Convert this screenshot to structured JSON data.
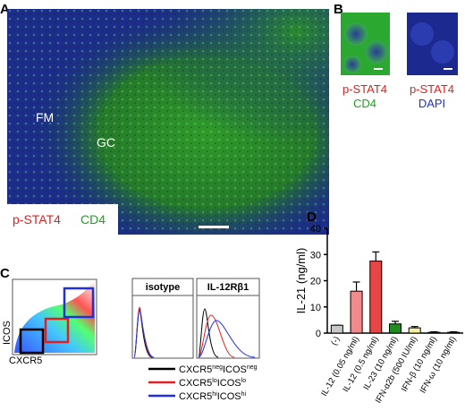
{
  "panels": {
    "a": {
      "label": "A",
      "fm": "FM",
      "gc": "GC",
      "stain1": "p-STAT4",
      "stain2": "CD4"
    },
    "b": {
      "label": "B",
      "left1": "p-STAT4",
      "left2": "CD4",
      "right1": "p-STAT4",
      "right2": "DAPI"
    },
    "c": {
      "label": "C",
      "yaxis": "ICOS",
      "xaxis": "CXCR5",
      "hist1": "isotype",
      "hist2": "IL-12Rβ1",
      "legend": [
        {
          "a": "CXCR5",
          "b": "neg",
          "c": "ICOS",
          "d": "neg"
        },
        {
          "a": "CXCR5",
          "b": "lo",
          "c": "ICOS",
          "d": "lo"
        },
        {
          "a": "CXCR5",
          "b": "hi",
          "c": "ICOS",
          "d": "hi"
        }
      ]
    },
    "d": {
      "label": "D"
    }
  },
  "chart_data": {
    "type": "bar",
    "ylabel": "IL-21 (ng/ml)",
    "categories": [
      "(-)",
      "IL-12 (0.05 ng/ml)",
      "IL-12 (0.5 ng/ml)",
      "IL-23 (10 ng/ml)",
      "IFN-α2b (500 IU/ml)",
      "IFN-β (10 ng/ml)",
      "IFN-ω (10 ng/ml)"
    ],
    "values": [
      3,
      16,
      27.5,
      3.5,
      2,
      0.3,
      0.3
    ],
    "errors": [
      0,
      3.5,
      3.5,
      1,
      0.5,
      0.2,
      0.2
    ],
    "colors": [
      "#c8c8c8",
      "#f28a8a",
      "#e84545",
      "#1f8c1f",
      "#f4efa0",
      "#ffffff",
      "#ffffff"
    ],
    "ylim": [
      0,
      40
    ],
    "yticks": [
      0,
      10,
      20,
      30,
      40
    ]
  }
}
